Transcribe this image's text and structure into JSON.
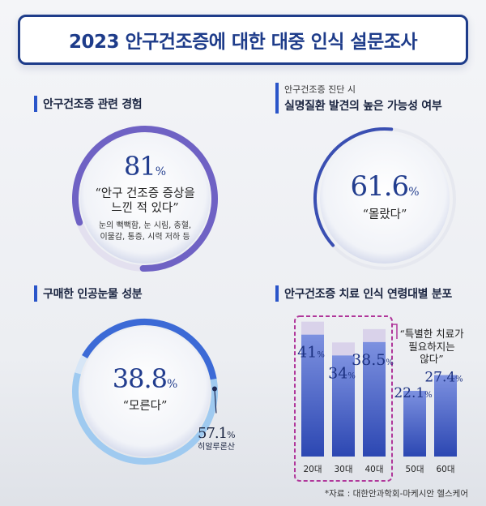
{
  "title": "2023 안구건조증에 대한 대중 인식 설문조사",
  "panel1": {
    "heading": "안구건조증 관련 경험",
    "value_text": "81",
    "value_pct": 81,
    "quote_line1": "“안구 건조증 증상을",
    "quote_line2": "느낀 적 있다”",
    "detail_line1": "눈의 뻑뻑함, 눈 시림, 충혈,",
    "detail_line2": "이물감, 통증, 시력 저하 등"
  },
  "panel2": {
    "subheading": "안구건조증 진단 시",
    "heading": "실명질환 발견의 높은 가능성 여부",
    "value_text": "61.6",
    "value_pct": 61.6,
    "quote": "“몰랐다”"
  },
  "panel3": {
    "heading": "구매한 인공눈물 성분",
    "value_text": "38.8",
    "value_pct": 38.8,
    "quote": "“모른다”",
    "second_value_text": "57.1",
    "second_value_pct": 57.1,
    "second_label": "히알루론산"
  },
  "percent_symbol": "%",
  "chart_data": {
    "type": "bar",
    "title": "안구건조증 치료 인식 연령대별 분포",
    "categories": [
      "20대",
      "30대",
      "40대",
      "50대",
      "60대"
    ],
    "values": [
      41,
      34,
      38.5,
      22.1,
      27.4
    ],
    "value_labels": [
      "41",
      "34",
      "38.5",
      "22.1",
      "27.4"
    ],
    "ylim": [
      0,
      45
    ],
    "highlight_categories": [
      "20대",
      "30대",
      "40대"
    ],
    "annotation_line1": "“특별한 치료가",
    "annotation_line2": "필요하지는",
    "annotation_line3": "않다”",
    "colors": {
      "bar_top": "#7d91e0",
      "bar_bottom": "#2c47b2",
      "bg_bar": "#d9d2ea",
      "highlight_border": "#b0369a"
    }
  },
  "source": "*자료 : 대한안과학회-마케시안 헬스케어"
}
